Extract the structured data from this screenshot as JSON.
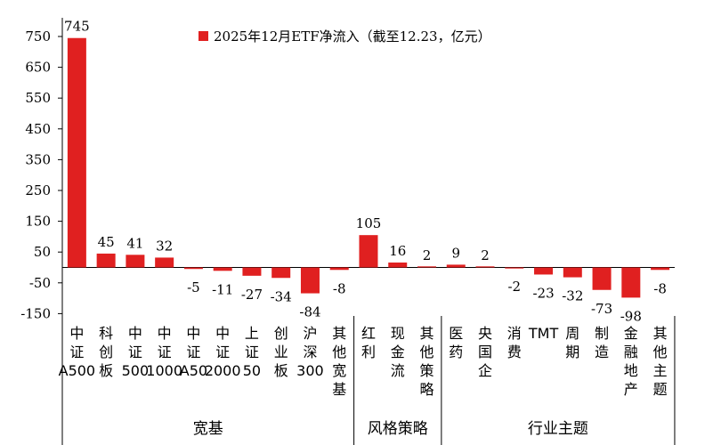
{
  "chart_data": {
    "type": "bar",
    "legend": {
      "label": "2025年12月ETF净流入（截至12.23，亿元）",
      "position": "top",
      "color": "#e02020"
    },
    "yticks": [
      750,
      650,
      550,
      450,
      350,
      250,
      150,
      50,
      -50,
      -150
    ],
    "ylim": [
      -150,
      760
    ],
    "categories": [
      "中证A500",
      "科创板",
      "中证500",
      "中证1000",
      "中证A50",
      "中证2000",
      "上证50",
      "创业板",
      "沪深300",
      "其他宽基",
      "红利",
      "现金流",
      "其他策略",
      "医药",
      "央国企",
      "消费",
      "TMT",
      "周期",
      "制造",
      "金融地产",
      "其他主题"
    ],
    "series": [
      {
        "values": [
          745,
          45,
          41,
          32,
          -5,
          -11,
          -27,
          -34,
          -84,
          -8,
          105,
          16,
          2,
          9,
          2,
          -2,
          -23,
          -32,
          -73,
          -98,
          -8
        ],
        "labels": [
          "745",
          "45",
          "41",
          "32",
          "-5",
          "-11",
          "-27",
          "-34",
          "-84",
          "-8",
          "105",
          "16",
          "2",
          "9",
          "2",
          "-2",
          "-23",
          "-32",
          "-73",
          "-98",
          "-8"
        ]
      }
    ],
    "groups": [
      {
        "name": "宽基",
        "start": 0,
        "end": 9
      },
      {
        "name": "风格策略",
        "start": 10,
        "end": 12
      },
      {
        "name": "行业主题",
        "start": 13,
        "end": 20
      }
    ],
    "bar_color": "#e02020",
    "grid": false
  }
}
